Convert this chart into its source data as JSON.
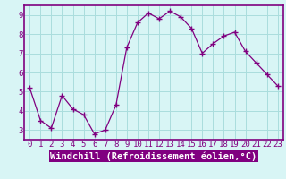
{
  "x": [
    0,
    1,
    2,
    3,
    4,
    5,
    6,
    7,
    8,
    9,
    10,
    11,
    12,
    13,
    14,
    15,
    16,
    17,
    18,
    19,
    20,
    21,
    22,
    23
  ],
  "y": [
    5.2,
    3.5,
    3.1,
    4.8,
    4.1,
    3.8,
    2.8,
    3.0,
    4.3,
    7.3,
    8.6,
    9.1,
    8.8,
    9.2,
    8.9,
    8.3,
    7.0,
    7.5,
    7.9,
    8.1,
    7.1,
    6.5,
    5.9,
    5.3
  ],
  "line_color": "#800080",
  "marker": "+",
  "marker_size": 4,
  "bg_color": "#d8f5f5",
  "grid_color": "#aadddd",
  "xlabel": "Windchill (Refroidissement éolien,°C)",
  "xlabel_bg": "#800080",
  "xlabel_color": "#ffffff",
  "xlim": [
    -0.5,
    23.5
  ],
  "ylim": [
    2.5,
    9.5
  ],
  "xticks": [
    0,
    1,
    2,
    3,
    4,
    5,
    6,
    7,
    8,
    9,
    10,
    11,
    12,
    13,
    14,
    15,
    16,
    17,
    18,
    19,
    20,
    21,
    22,
    23
  ],
  "yticks": [
    3,
    4,
    5,
    6,
    7,
    8,
    9
  ],
  "tick_fontsize": 6.5,
  "xlabel_fontsize": 7.5,
  "spine_color": "#800080",
  "axis_label_color": "#800080",
  "tick_color": "#800080"
}
